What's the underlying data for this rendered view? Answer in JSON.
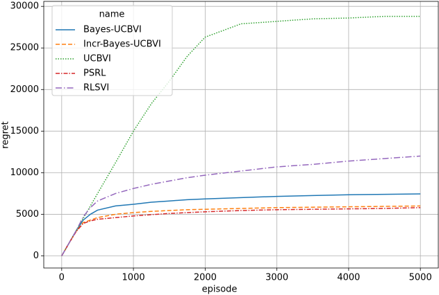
{
  "chart_data": {
    "type": "line",
    "x_label": "episode",
    "y_label": "regret",
    "x": [
      0,
      100,
      200,
      300,
      400,
      500,
      750,
      1000,
      1250,
      1500,
      1750,
      2000,
      2500,
      3000,
      3500,
      4000,
      4500,
      5000
    ],
    "xlim": [
      -250,
      5250
    ],
    "xticks": [
      0,
      1000,
      2000,
      3000,
      4000,
      5000
    ],
    "ylim": [
      -1460,
      30600
    ],
    "yticks": [
      0,
      5000,
      10000,
      15000,
      20000,
      25000,
      30000
    ],
    "grid": true,
    "legend_title": "name",
    "legend_position": "upper left",
    "series": [
      {
        "name": "Bayes-UCBVI",
        "color": "#1f77b4",
        "dash": "solid",
        "values": [
          0,
          1500,
          3000,
          4300,
          5000,
          5500,
          6000,
          6200,
          6450,
          6600,
          6750,
          6850,
          7000,
          7150,
          7250,
          7350,
          7400,
          7450
        ]
      },
      {
        "name": "Incr-Bayes-UCBVI",
        "color": "#ff7f0e",
        "dash": "dashed",
        "values": [
          0,
          1500,
          2900,
          4000,
          4300,
          4600,
          5000,
          5200,
          5350,
          5450,
          5550,
          5600,
          5700,
          5800,
          5850,
          5900,
          5950,
          6000
        ]
      },
      {
        "name": "UCBVI",
        "color": "#2ca02c",
        "dash": "dotted",
        "values": [
          0,
          1500,
          3000,
          4500,
          6000,
          7500,
          11200,
          15000,
          18300,
          21000,
          24000,
          26300,
          27900,
          28200,
          28500,
          28600,
          28800,
          28800
        ]
      },
      {
        "name": "PSRL",
        "color": "#d62728",
        "dash": "dashdot",
        "values": [
          0,
          1500,
          2900,
          3900,
          4200,
          4400,
          4600,
          4800,
          4950,
          5100,
          5200,
          5300,
          5450,
          5550,
          5600,
          5650,
          5700,
          5800
        ]
      },
      {
        "name": "RLSVI",
        "color": "#9467bd",
        "dash": "longdashdot",
        "values": [
          0,
          1500,
          3000,
          4700,
          5800,
          6600,
          7500,
          8100,
          8600,
          9000,
          9400,
          9700,
          10200,
          10700,
          11000,
          11400,
          11700,
          12000
        ]
      }
    ]
  }
}
